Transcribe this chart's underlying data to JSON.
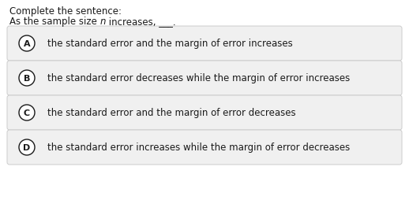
{
  "title_line1": "Complete the sentence:",
  "title_line2_pre": "As the sample size ",
  "title_line2_italic": "n",
  "title_line2_post": " increases, ___.",
  "options": [
    {
      "label": "A",
      "text": "the standard error and the margin of error increases"
    },
    {
      "label": "B",
      "text": "the standard error decreases while the margin of error increases"
    },
    {
      "label": "C",
      "text": "the standard error and the margin of error decreases"
    },
    {
      "label": "D",
      "text": "the standard error increases while the margin of error decreases"
    }
  ],
  "bg_color": "#ffffff",
  "option_bg_color": "#f0f0f0",
  "option_border_color": "#cccccc",
  "text_color": "#1a1a1a",
  "circle_bg": "#ffffff",
  "circle_border": "#1a1a1a",
  "font_size_title": 8.5,
  "font_size_option": 8.5,
  "font_size_label": 8.0
}
